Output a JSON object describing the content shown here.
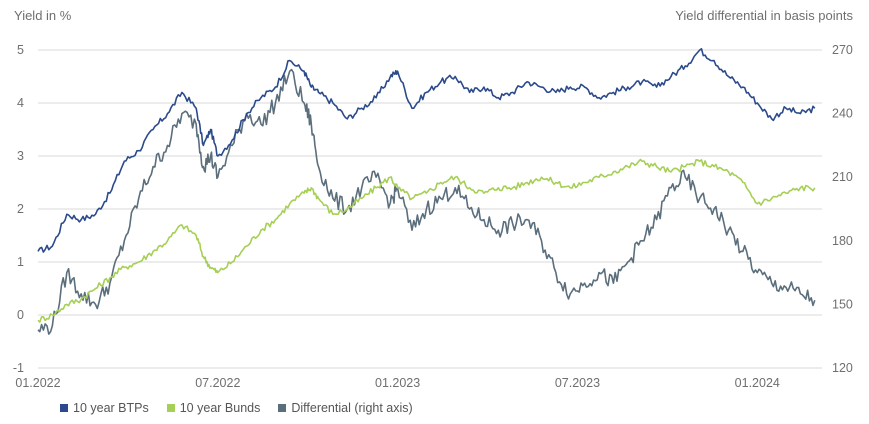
{
  "chart_data": {
    "type": "line",
    "title": "",
    "ylabel": "Yield in %",
    "y2label": "Yield differential in basis points",
    "xlabel": "",
    "x_ticks": [
      "01.2022",
      "07.2022",
      "01.2023",
      "07.2023",
      "01.2024"
    ],
    "x_range": [
      2022.0,
      2024.18
    ],
    "ylim": [
      -1,
      5
    ],
    "y_ticks": [
      -1,
      0,
      1,
      2,
      3,
      4,
      5
    ],
    "y2lim": [
      120,
      270
    ],
    "y2_ticks": [
      120,
      150,
      180,
      210,
      240,
      270
    ],
    "grid": "horizontal",
    "legend_position": "bottom-left",
    "series": [
      {
        "name": "10 year BTPs",
        "axis": "left",
        "color": "#2b4a8b",
        "x": [
          2022.0,
          2022.04,
          2022.08,
          2022.12,
          2022.16,
          2022.2,
          2022.24,
          2022.28,
          2022.32,
          2022.36,
          2022.4,
          2022.44,
          2022.46,
          2022.48,
          2022.5,
          2022.54,
          2022.58,
          2022.62,
          2022.66,
          2022.7,
          2022.74,
          2022.76,
          2022.78,
          2022.82,
          2022.86,
          2022.9,
          2022.94,
          2022.98,
          2023.0,
          2023.04,
          2023.08,
          2023.12,
          2023.16,
          2023.2,
          2023.24,
          2023.28,
          2023.32,
          2023.36,
          2023.4,
          2023.44,
          2023.48,
          2023.52,
          2023.56,
          2023.6,
          2023.64,
          2023.68,
          2023.72,
          2023.76,
          2023.8,
          2023.84,
          2023.88,
          2023.92,
          2023.96,
          2024.0,
          2024.04,
          2024.08,
          2024.12,
          2024.16
        ],
        "values": [
          1.2,
          1.3,
          1.9,
          1.8,
          1.9,
          2.3,
          2.9,
          3.1,
          3.5,
          3.8,
          4.2,
          3.9,
          3.2,
          3.5,
          3.0,
          3.3,
          3.8,
          4.1,
          4.3,
          4.8,
          4.6,
          4.3,
          4.2,
          4.0,
          3.7,
          3.9,
          4.1,
          4.5,
          4.6,
          3.9,
          4.2,
          4.4,
          4.5,
          4.2,
          4.3,
          4.1,
          4.2,
          4.4,
          4.3,
          4.2,
          4.3,
          4.3,
          4.1,
          4.2,
          4.3,
          4.4,
          4.3,
          4.5,
          4.7,
          5.0,
          4.8,
          4.5,
          4.3,
          4.0,
          3.7,
          3.9,
          3.8,
          3.9
        ]
      },
      {
        "name": "10 year Bunds",
        "axis": "left",
        "color": "#a6cf55",
        "x": [
          2022.0,
          2022.04,
          2022.08,
          2022.12,
          2022.16,
          2022.2,
          2022.24,
          2022.28,
          2022.32,
          2022.36,
          2022.4,
          2022.44,
          2022.46,
          2022.48,
          2022.5,
          2022.54,
          2022.58,
          2022.62,
          2022.66,
          2022.7,
          2022.74,
          2022.76,
          2022.78,
          2022.82,
          2022.86,
          2022.9,
          2022.94,
          2022.98,
          2023.0,
          2023.04,
          2023.08,
          2023.12,
          2023.16,
          2023.2,
          2023.24,
          2023.28,
          2023.32,
          2023.36,
          2023.4,
          2023.44,
          2023.48,
          2023.52,
          2023.56,
          2023.6,
          2023.64,
          2023.68,
          2023.72,
          2023.76,
          2023.8,
          2023.84,
          2023.88,
          2023.92,
          2023.96,
          2024.0,
          2024.04,
          2024.08,
          2024.12,
          2024.16
        ],
        "values": [
          -0.1,
          0.0,
          0.2,
          0.3,
          0.5,
          0.7,
          0.9,
          1.0,
          1.2,
          1.4,
          1.7,
          1.5,
          1.1,
          0.9,
          0.8,
          1.0,
          1.3,
          1.6,
          1.8,
          2.1,
          2.3,
          2.4,
          2.2,
          1.9,
          2.0,
          2.2,
          2.4,
          2.6,
          2.4,
          2.2,
          2.3,
          2.5,
          2.6,
          2.4,
          2.3,
          2.4,
          2.4,
          2.5,
          2.6,
          2.5,
          2.4,
          2.5,
          2.6,
          2.7,
          2.8,
          2.9,
          2.8,
          2.7,
          2.8,
          2.9,
          2.8,
          2.7,
          2.5,
          2.1,
          2.2,
          2.3,
          2.4,
          2.4
        ]
      },
      {
        "name": "Differential (right axis)",
        "axis": "right",
        "color": "#5b6e7c",
        "x": [
          2022.0,
          2022.04,
          2022.08,
          2022.12,
          2022.16,
          2022.2,
          2022.24,
          2022.28,
          2022.32,
          2022.36,
          2022.4,
          2022.44,
          2022.46,
          2022.48,
          2022.5,
          2022.54,
          2022.58,
          2022.62,
          2022.66,
          2022.7,
          2022.74,
          2022.76,
          2022.78,
          2022.82,
          2022.86,
          2022.9,
          2022.94,
          2022.98,
          2023.0,
          2023.04,
          2023.08,
          2023.12,
          2023.16,
          2023.2,
          2023.24,
          2023.28,
          2023.32,
          2023.36,
          2023.4,
          2023.44,
          2023.48,
          2023.52,
          2023.56,
          2023.6,
          2023.64,
          2023.68,
          2023.72,
          2023.76,
          2023.8,
          2023.84,
          2023.88,
          2023.92,
          2023.96,
          2024.0,
          2024.04,
          2024.08,
          2024.12,
          2024.16
        ],
        "values": [
          138,
          140,
          165,
          155,
          150,
          160,
          180,
          200,
          215,
          225,
          240,
          235,
          215,
          220,
          210,
          225,
          240,
          235,
          245,
          260,
          245,
          235,
          215,
          200,
          195,
          205,
          210,
          198,
          205,
          185,
          195,
          200,
          205,
          195,
          190,
          185,
          188,
          190,
          180,
          165,
          155,
          160,
          165,
          160,
          170,
          180,
          190,
          205,
          210,
          200,
          195,
          185,
          175,
          165,
          160,
          158,
          155,
          152
        ]
      }
    ]
  }
}
